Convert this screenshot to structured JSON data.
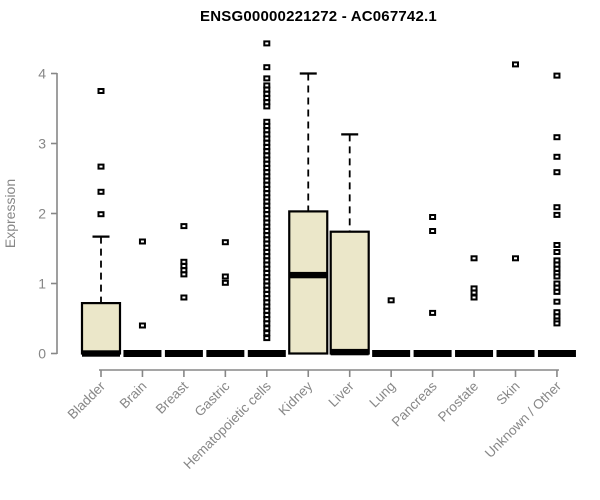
{
  "title": "ENSG00000221272 - AC067742.1",
  "chart_data": {
    "type": "boxplot",
    "title": "ENSG00000221272 - AC067742.1",
    "xlabel": "",
    "ylabel": "Expression",
    "ylim": [
      0,
      4.45
    ],
    "yticks": [
      0,
      1,
      2,
      3,
      4
    ],
    "grid": false,
    "legend": false,
    "categories": [
      "Bladder",
      "Brain",
      "Breast",
      "Gastric",
      "Hematopoietic cells",
      "Kidney",
      "Liver",
      "Lung",
      "Pancreas",
      "Prostate",
      "Skin",
      "Unknown / Other"
    ],
    "colors": {
      "box_fill": "#ebe7c9",
      "box_stroke": "#000000",
      "median": "#000000",
      "whisker": "#000000",
      "outlier": "#000000",
      "axis": "#878787",
      "tick_text": "#878787",
      "title_text": "#000000",
      "background": "#ffffff"
    },
    "series": [
      {
        "category": "Bladder",
        "q1": 0,
        "median": 0,
        "q3": 0.72,
        "whisker_low": 0,
        "whisker_high": 1.67,
        "outliers": [
          3.75,
          2.67,
          2.31,
          1.99
        ]
      },
      {
        "category": "Brain",
        "q1": 0,
        "median": 0,
        "q3": 0,
        "whisker_low": 0,
        "whisker_high": 0,
        "outliers": [
          1.6,
          0.4
        ]
      },
      {
        "category": "Breast",
        "q1": 0,
        "median": 0,
        "q3": 0,
        "whisker_low": 0,
        "whisker_high": 0,
        "outliers": [
          1.82,
          1.31,
          1.25,
          1.19,
          1.13,
          0.8
        ]
      },
      {
        "category": "Gastric",
        "q1": 0,
        "median": 0,
        "q3": 0,
        "whisker_low": 0,
        "whisker_high": 0,
        "outliers": [
          1.59,
          1.1,
          1.01
        ]
      },
      {
        "category": "Hematopoietic cells",
        "q1": 0,
        "median": 0,
        "q3": 0,
        "whisker_low": 0,
        "whisker_high": 0,
        "outliers": [
          4.43,
          4.09,
          3.93,
          3.83,
          3.77,
          3.71,
          3.65,
          3.59,
          3.53,
          3.31,
          3.25,
          3.19,
          3.13,
          3.07,
          3.01,
          2.95,
          2.89,
          2.83,
          2.77,
          2.71,
          2.65,
          2.59,
          2.53,
          2.47,
          2.41,
          2.35,
          2.29,
          2.23,
          2.17,
          2.11,
          2.05,
          1.99,
          1.93,
          1.87,
          1.81,
          1.75,
          1.69,
          1.63,
          1.57,
          1.51,
          1.45,
          1.39,
          1.33,
          1.27,
          1.21,
          1.15,
          1.09,
          1.03,
          0.97,
          0.91,
          0.85,
          0.79,
          0.73,
          0.67,
          0.61,
          0.55,
          0.49,
          0.43,
          0.36,
          0.29,
          0.22
        ]
      },
      {
        "category": "Kidney",
        "q1": 0,
        "median": 1.12,
        "q3": 2.03,
        "whisker_low": 0,
        "whisker_high": 4.0,
        "outliers": []
      },
      {
        "category": "Liver",
        "q1": 0,
        "median": 0.02,
        "q3": 1.74,
        "whisker_low": 0,
        "whisker_high": 3.13,
        "outliers": []
      },
      {
        "category": "Lung",
        "q1": 0,
        "median": 0,
        "q3": 0,
        "whisker_low": 0,
        "whisker_high": 0,
        "outliers": [
          0.76
        ]
      },
      {
        "category": "Pancreas",
        "q1": 0,
        "median": 0,
        "q3": 0,
        "whisker_low": 0,
        "whisker_high": 0,
        "outliers": [
          1.95,
          1.75,
          0.58
        ]
      },
      {
        "category": "Prostate",
        "q1": 0,
        "median": 0,
        "q3": 0,
        "whisker_low": 0,
        "whisker_high": 0,
        "outliers": [
          1.36,
          0.93,
          0.87,
          0.8
        ]
      },
      {
        "category": "Skin",
        "q1": 0,
        "median": 0,
        "q3": 0,
        "whisker_low": 0,
        "whisker_high": 0,
        "outliers": [
          4.13,
          1.36
        ]
      },
      {
        "category": "Unknown / Other",
        "q1": 0,
        "median": 0,
        "q3": 0,
        "whisker_low": 0,
        "whisker_high": 0,
        "outliers": [
          3.97,
          3.09,
          2.81,
          2.59,
          2.09,
          1.98,
          1.55,
          1.45,
          1.33,
          1.27,
          1.21,
          1.15,
          1.1,
          1.0,
          0.94,
          0.88,
          0.74,
          0.59,
          0.53,
          0.47,
          0.43
        ]
      }
    ]
  }
}
